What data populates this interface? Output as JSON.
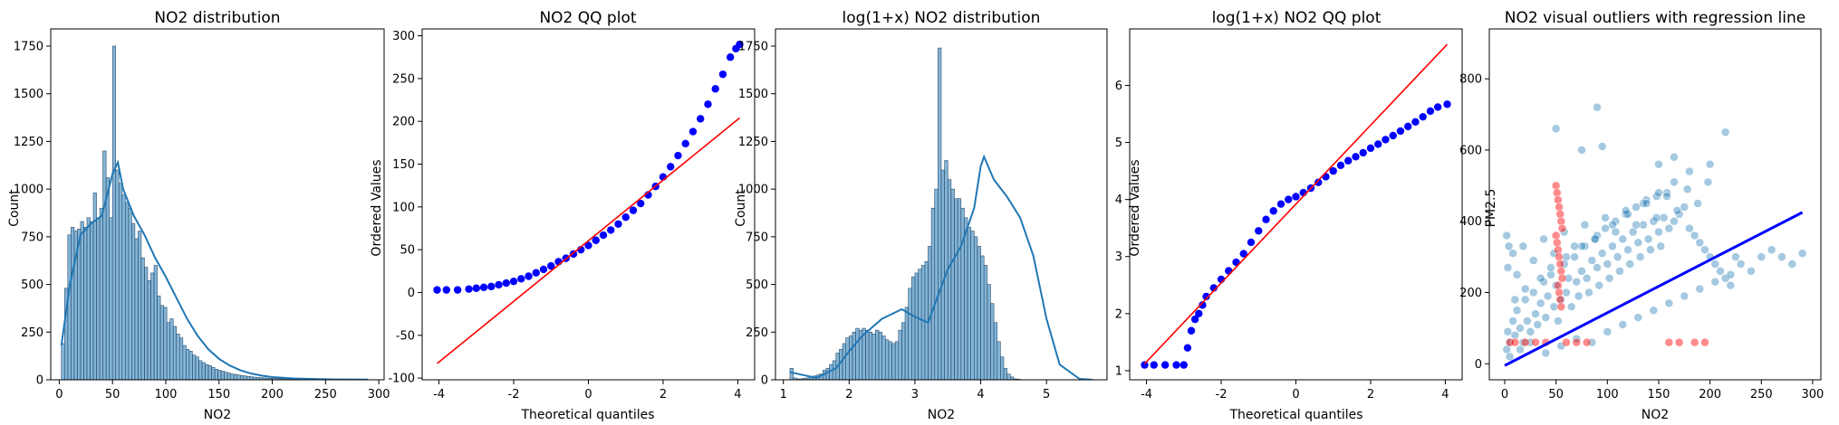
{
  "chart_data": [
    {
      "type": "histogram",
      "title": "NO2 distribution",
      "xlabel": "NO2",
      "ylabel": "Count",
      "xlim": [
        -8,
        305
      ],
      "ylim": [
        0,
        1840
      ],
      "xticks": [
        0,
        50,
        100,
        150,
        200,
        250,
        300
      ],
      "yticks": [
        0,
        250,
        500,
        750,
        1000,
        1250,
        1500,
        1750
      ],
      "bin_start": 2,
      "bin_width": 3,
      "counts": [
        190,
        480,
        760,
        800,
        780,
        790,
        830,
        800,
        850,
        830,
        980,
        850,
        900,
        1200,
        1060,
        850,
        1750,
        1100,
        1030,
        970,
        930,
        900,
        820,
        740,
        780,
        640,
        590,
        520,
        560,
        600,
        440,
        390,
        380,
        300,
        320,
        280,
        240,
        220,
        180,
        160,
        150,
        130,
        120,
        100,
        90,
        80,
        75,
        65,
        55,
        50,
        45,
        40,
        35,
        30,
        28,
        25,
        22,
        20,
        18,
        16,
        14,
        12,
        11,
        10,
        9,
        8,
        7,
        6,
        6,
        5,
        5,
        4,
        4,
        3,
        3,
        3,
        2,
        2,
        2,
        2,
        2,
        1,
        1,
        1,
        1,
        1,
        1,
        1,
        1,
        1,
        1,
        1,
        1,
        1,
        1,
        1,
        1
      ],
      "kde_x": [
        2,
        10,
        20,
        30,
        40,
        50,
        55,
        60,
        70,
        80,
        90,
        100,
        110,
        120,
        130,
        140,
        150,
        160,
        170,
        180,
        190,
        200,
        220,
        240,
        260,
        290
      ],
      "kde_y": [
        180,
        500,
        760,
        820,
        860,
        1080,
        1140,
        1000,
        860,
        760,
        640,
        540,
        430,
        320,
        230,
        160,
        110,
        75,
        50,
        33,
        22,
        14,
        7,
        4,
        2,
        1
      ],
      "color": "#1f77b4"
    },
    {
      "type": "scatter",
      "title": "NO2 QQ plot",
      "xlabel": "Theoretical quantiles",
      "ylabel": "Ordered Values",
      "xlim": [
        -4.45,
        4.45
      ],
      "ylim": [
        -102,
        308
      ],
      "xticks": [
        -4,
        -2,
        0,
        2,
        4
      ],
      "yticks": [
        -100,
        -50,
        0,
        50,
        100,
        150,
        200,
        250,
        300
      ],
      "points_x": [
        -4.05,
        -3.8,
        -3.5,
        -3.2,
        -3.0,
        -2.8,
        -2.6,
        -2.4,
        -2.2,
        -2.0,
        -1.8,
        -1.6,
        -1.4,
        -1.2,
        -1.0,
        -0.8,
        -0.6,
        -0.4,
        -0.2,
        0,
        0.2,
        0.4,
        0.6,
        0.8,
        1.0,
        1.2,
        1.4,
        1.6,
        1.8,
        2.0,
        2.2,
        2.4,
        2.6,
        2.8,
        3.0,
        3.2,
        3.4,
        3.6,
        3.8,
        3.95,
        4.05
      ],
      "points_y": [
        3,
        3,
        3,
        4,
        5,
        6,
        7,
        9,
        11,
        13,
        16,
        19,
        23,
        27,
        31,
        36,
        40,
        45,
        50,
        55,
        61,
        67,
        73,
        80,
        88,
        96,
        104,
        114,
        124,
        135,
        147,
        160,
        174,
        188,
        203,
        220,
        238,
        255,
        275,
        285,
        290
      ],
      "line_x": [
        -4.05,
        4.05
      ],
      "line_y": [
        -83,
        204
      ],
      "marker_color": "#0000ff",
      "line_color": "#ff0000"
    },
    {
      "type": "histogram",
      "title": "log(1+x) NO2 distribution",
      "xlabel": "NO2",
      "ylabel": "Count",
      "xlim": [
        0.88,
        5.92
      ],
      "ylim": [
        0,
        1840
      ],
      "xticks": [
        1,
        2,
        3,
        4,
        5
      ],
      "yticks": [
        0,
        250,
        500,
        750,
        1000,
        1250,
        1500,
        1750
      ],
      "bin_start": 1.1,
      "bin_width": 0.05,
      "counts": [
        60,
        10,
        5,
        5,
        8,
        10,
        15,
        20,
        25,
        30,
        50,
        60,
        80,
        100,
        140,
        160,
        190,
        220,
        230,
        250,
        270,
        260,
        270,
        260,
        250,
        240,
        260,
        250,
        230,
        210,
        200,
        190,
        200,
        260,
        300,
        380,
        480,
        540,
        560,
        580,
        600,
        620,
        700,
        900,
        1000,
        1740,
        1100,
        1150,
        1050,
        1000,
        950,
        950,
        900,
        850,
        800,
        780,
        750,
        700,
        650,
        600,
        500,
        400,
        300,
        200,
        120,
        60,
        30,
        15,
        5,
        3
      ],
      "kde_x": [
        1.1,
        1.5,
        1.8,
        2.0,
        2.2,
        2.5,
        2.8,
        3.0,
        3.2,
        3.5,
        3.7,
        3.9,
        4.0,
        4.05,
        4.2,
        4.4,
        4.6,
        4.8,
        5.0,
        5.2,
        5.5,
        5.7
      ],
      "kde_y": [
        40,
        10,
        60,
        150,
        230,
        320,
        370,
        330,
        300,
        580,
        700,
        900,
        1120,
        1170,
        1050,
        960,
        850,
        650,
        320,
        80,
        5,
        0
      ],
      "color": "#1f77b4"
    },
    {
      "type": "scatter",
      "title": "log(1+x) NO2 QQ plot",
      "xlabel": "Theoretical quantiles",
      "ylabel": "Ordered Values",
      "xlim": [
        -4.45,
        4.45
      ],
      "ylim": [
        0.84,
        6.99
      ],
      "xticks": [
        -4,
        -2,
        0,
        2,
        4
      ],
      "yticks": [
        1,
        2,
        3,
        4,
        5,
        6
      ],
      "points_x": [
        -4.05,
        -3.8,
        -3.5,
        -3.2,
        -3.0,
        -2.9,
        -2.8,
        -2.7,
        -2.6,
        -2.5,
        -2.4,
        -2.2,
        -2.0,
        -1.8,
        -1.6,
        -1.4,
        -1.2,
        -1.0,
        -0.8,
        -0.6,
        -0.4,
        -0.2,
        0,
        0.2,
        0.4,
        0.6,
        0.8,
        1.0,
        1.2,
        1.4,
        1.6,
        1.8,
        2.0,
        2.2,
        2.4,
        2.6,
        2.8,
        3.0,
        3.2,
        3.4,
        3.6,
        3.8,
        4.05
      ],
      "points_y": [
        1.1,
        1.1,
        1.1,
        1.1,
        1.1,
        1.4,
        1.7,
        1.9,
        2.0,
        2.15,
        2.3,
        2.45,
        2.6,
        2.75,
        2.9,
        3.05,
        3.25,
        3.45,
        3.65,
        3.8,
        3.92,
        4.0,
        4.05,
        4.12,
        4.2,
        4.3,
        4.4,
        4.5,
        4.6,
        4.68,
        4.75,
        4.82,
        4.9,
        4.97,
        5.05,
        5.12,
        5.2,
        5.28,
        5.36,
        5.45,
        5.55,
        5.62,
        5.67
      ],
      "line_x": [
        -4.05,
        4.05
      ],
      "line_y": [
        1.12,
        6.72
      ],
      "marker_color": "#0000ff",
      "line_color": "#ff0000"
    },
    {
      "type": "scatter",
      "title": "NO2 visual outliers with regression line",
      "xlabel": "NO2",
      "ylabel": "PM2.5",
      "xlim": [
        -15,
        308
      ],
      "ylim": [
        -45,
        940
      ],
      "xticks": [
        0,
        50,
        100,
        150,
        200,
        250,
        300
      ],
      "yticks": [
        0,
        200,
        400,
        600,
        800
      ],
      "points_x": [
        2,
        3,
        5,
        8,
        10,
        12,
        15,
        18,
        20,
        22,
        25,
        28,
        30,
        32,
        35,
        38,
        40,
        42,
        45,
        48,
        50,
        52,
        55,
        58,
        60,
        62,
        65,
        68,
        70,
        72,
        75,
        78,
        80,
        82,
        85,
        88,
        90,
        92,
        95,
        98,
        100,
        102,
        105,
        108,
        110,
        112,
        115,
        118,
        120,
        122,
        125,
        128,
        130,
        132,
        135,
        138,
        140,
        142,
        145,
        148,
        150,
        152,
        155,
        158,
        160,
        165,
        170,
        175,
        180,
        185,
        190,
        195,
        200,
        205,
        210,
        215,
        220,
        225,
        230,
        240,
        250,
        260,
        270,
        280,
        290,
        5,
        15,
        25,
        40,
        55,
        70,
        85,
        100,
        115,
        130,
        145,
        160,
        175,
        190,
        205,
        220,
        10,
        20,
        35,
        45,
        60,
        75,
        90,
        105,
        120,
        135,
        150,
        165,
        180,
        200,
        3,
        8,
        12,
        18,
        28,
        38,
        48,
        58,
        68,
        78,
        88,
        98,
        108,
        118,
        128,
        138,
        148,
        158,
        168,
        178,
        188,
        198,
        50,
        90,
        215,
        95,
        75,
        165,
        150,
        2,
        4
      ],
      "points_y": [
        40,
        90,
        60,
        120,
        80,
        150,
        100,
        60,
        180,
        120,
        90,
        200,
        140,
        110,
        170,
        230,
        130,
        190,
        250,
        160,
        220,
        120,
        180,
        280,
        200,
        240,
        160,
        300,
        230,
        190,
        260,
        330,
        240,
        200,
        290,
        350,
        270,
        220,
        310,
        380,
        280,
        240,
        330,
        400,
        300,
        260,
        350,
        420,
        320,
        280,
        370,
        440,
        340,
        300,
        390,
        460,
        350,
        320,
        400,
        470,
        370,
        330,
        410,
        480,
        380,
        400,
        420,
        440,
        380,
        360,
        340,
        320,
        300,
        280,
        260,
        240,
        220,
        300,
        280,
        260,
        300,
        320,
        300,
        280,
        310,
        20,
        40,
        60,
        30,
        50,
        70,
        60,
        90,
        110,
        130,
        150,
        170,
        190,
        210,
        230,
        250,
        180,
        210,
        240,
        270,
        300,
        330,
        360,
        390,
        420,
        450,
        480,
        510,
        540,
        560,
        270,
        310,
        250,
        330,
        290,
        350,
        310,
        370,
        330,
        390,
        350,
        410,
        370,
        430,
        390,
        450,
        410,
        470,
        430,
        490,
        450,
        510,
        660,
        720,
        650,
        610,
        600,
        580,
        560,
        360,
        330
      ],
      "outliers_x": [
        50,
        51,
        52,
        53,
        54,
        55,
        56,
        50,
        51,
        52,
        53,
        54,
        55,
        56,
        52,
        53,
        54,
        55,
        20,
        30,
        40,
        60,
        70,
        80,
        160,
        170,
        185,
        195,
        5,
        10
      ],
      "outliers_y": [
        500,
        480,
        460,
        440,
        420,
        400,
        380,
        360,
        340,
        320,
        300,
        280,
        260,
        240,
        220,
        200,
        180,
        160,
        60,
        60,
        60,
        60,
        60,
        60,
        60,
        60,
        60,
        60,
        60,
        60
      ],
      "regression_x": [
        0,
        290
      ],
      "regression_y": [
        -5,
        425
      ],
      "point_color": "#1f77b4",
      "outlier_color": "#ff0000",
      "line_color": "#0000ff"
    }
  ]
}
